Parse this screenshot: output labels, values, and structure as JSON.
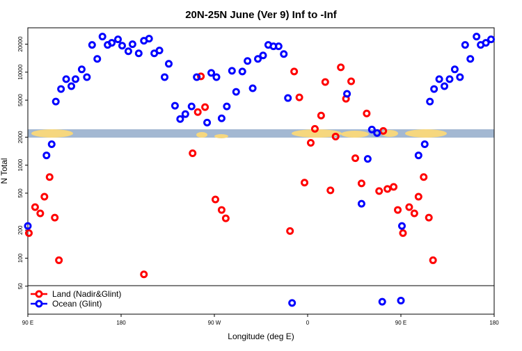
{
  "chart_data": {
    "type": "scatter",
    "title": "20N-25N June (Ver 9)   Inf to -Inf",
    "x_label": "Longitude (deg E)",
    "y_label": "N Total",
    "log_y": true,
    "legend": "bottom-left",
    "xlim": [
      -270,
      180
    ],
    "ylim": [
      25,
      30000
    ],
    "xticks": [
      {
        "value": -270,
        "label": "90 E"
      },
      {
        "value": -180,
        "label": "180"
      },
      {
        "value": -90,
        "label": "90 W"
      },
      0,
      {
        "value": 90,
        "label": "90 E"
      },
      180
    ],
    "yticks": [
      50,
      100,
      200,
      500,
      1000,
      2000,
      5000,
      10000,
      20000
    ],
    "series": [
      {
        "name": "Land (Nadir&Glint)",
        "color": "#ff0000",
        "x": [
          -269,
          -263,
          -258,
          -254,
          -249,
          -244,
          -240,
          -158,
          -111,
          -106,
          -103,
          -99,
          -89,
          -83,
          -79,
          -17,
          -13,
          -8,
          -3,
          3,
          7,
          13,
          17,
          22,
          27,
          32,
          37,
          42,
          46,
          52,
          57,
          69,
          73,
          77,
          83,
          87,
          92,
          98,
          103,
          107,
          112,
          117,
          121
        ],
        "values": [
          186,
          354,
          303,
          458,
          745,
          273,
          95,
          67,
          1342,
          3727,
          9018,
          4207,
          428,
          330,
          268,
          196,
          10165,
          5358,
          649,
          1739,
          2460,
          3419,
          7833,
          536,
          2032,
          11270,
          5176,
          7977,
          1188,
          637,
          3600,
          527,
          2333,
          555,
          584,
          330,
          186,
          354,
          303,
          458,
          745,
          273,
          95
        ]
      },
      {
        "name": "Ocean (Glint)",
        "color": "#0000ff",
        "x": [
          -270,
          -252,
          -247,
          -243,
          -238,
          -233,
          -228,
          -224,
          -218,
          -213,
          -208,
          -203,
          -198,
          -193,
          -189,
          -183,
          -179,
          -173,
          -169,
          -163,
          -158,
          -153,
          -148,
          -143,
          -138,
          -134,
          -128,
          -123,
          -118,
          -112,
          -107,
          -97,
          -93,
          -88,
          -83,
          -78,
          -73,
          -69,
          -63,
          -58,
          -53,
          -48,
          -43,
          -38,
          -33,
          -28,
          -23,
          -19,
          -15,
          38,
          52,
          58,
          62,
          67,
          72,
          90,
          91,
          107,
          113,
          118,
          122,
          127,
          132,
          137,
          142,
          147,
          152,
          157,
          163,
          167,
          172,
          177
        ],
        "values": [
          222,
          1274,
          1680,
          4830,
          6590,
          8410,
          7070,
          8410,
          10720,
          8850,
          19630,
          13890,
          24150,
          19630,
          20690,
          22540,
          19270,
          16790,
          19990,
          15950,
          21780,
          22930,
          15950,
          17100,
          8850,
          12300,
          4355,
          3133,
          3540,
          4280,
          8850,
          2870,
          9820,
          8850,
          3190,
          4280,
          10350,
          6150,
          10165,
          13180,
          6710,
          13890,
          15130,
          19630,
          18970,
          18970,
          15670,
          5270,
          33,
          5850,
          385,
          1168,
          2415,
          2218,
          34,
          35,
          222,
          1274,
          1680,
          4830,
          6590,
          8410,
          7070,
          8410,
          10720,
          8850,
          19630,
          13890,
          24150,
          19630,
          20690,
          22540
        ]
      }
    ]
  }
}
